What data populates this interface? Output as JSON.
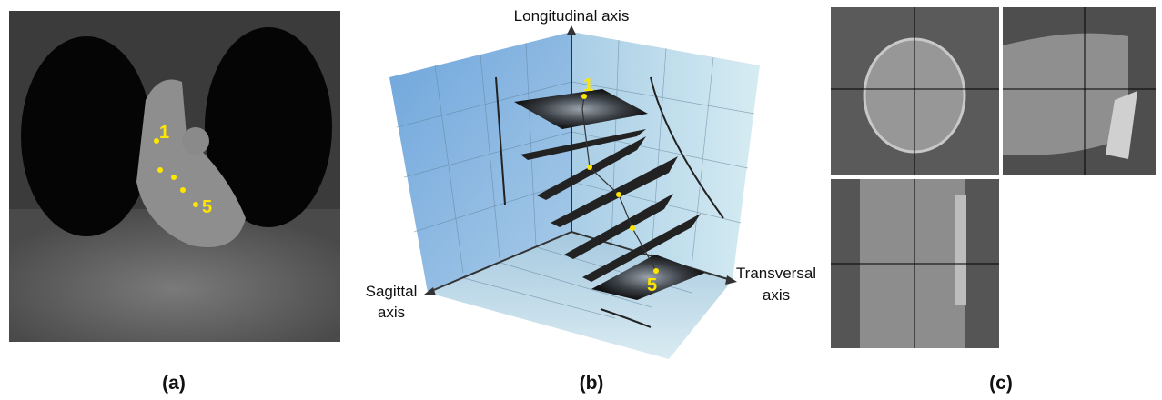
{
  "panel_a": {
    "marker_first": "1",
    "marker_last": "5",
    "caption": "(a)"
  },
  "panel_b": {
    "longitudinal_axis": "Longitudinal axis",
    "sagittal_axis": [
      "Sagittal",
      "axis"
    ],
    "transversal_axis": [
      "Transversal",
      "axis"
    ],
    "marker_first": "1",
    "marker_last": "5",
    "caption": "(b)"
  },
  "panel_c": {
    "caption": "(c)"
  }
}
